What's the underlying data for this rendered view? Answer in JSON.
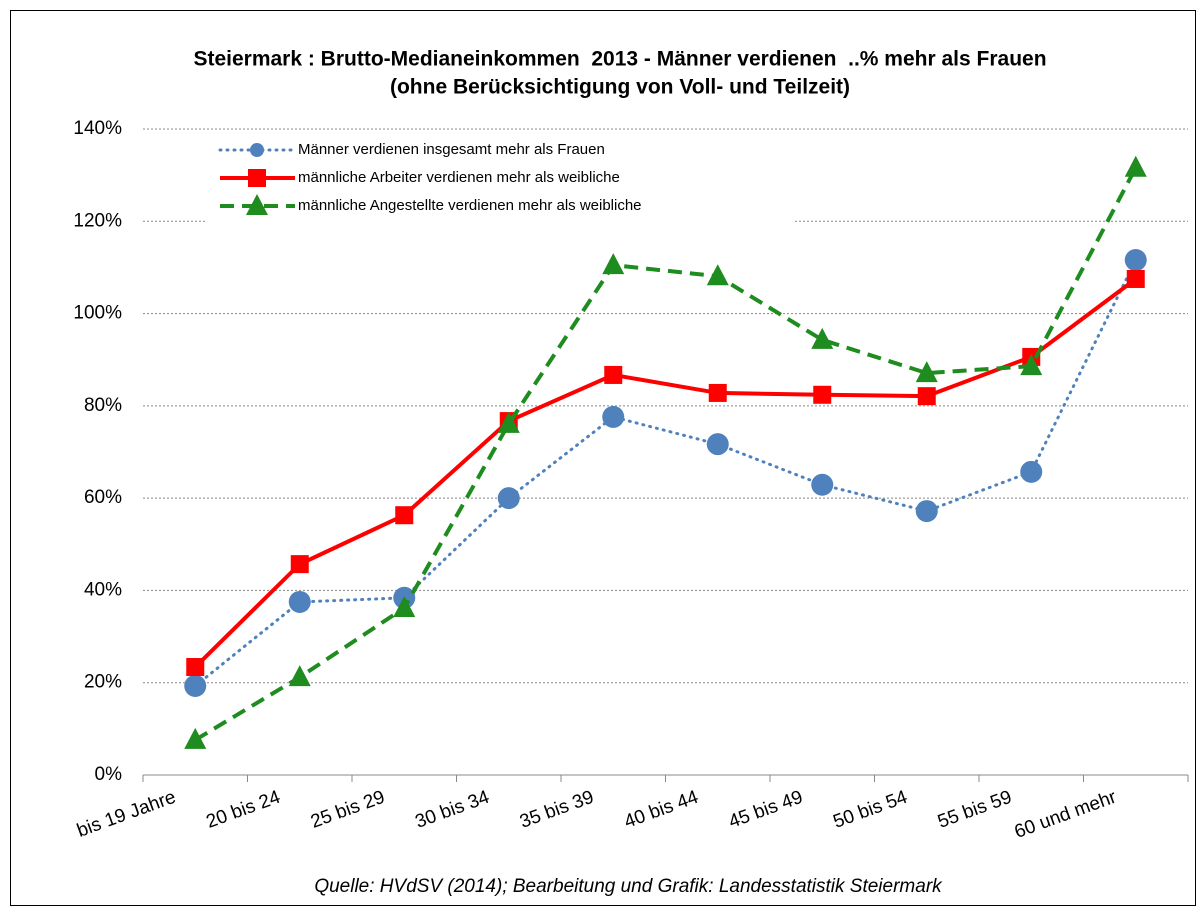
{
  "chart_data": {
    "type": "line",
    "title": "Steiermark : Brutto-Medianeinkommen  2013 - Männer verdienen  ..% mehr als Frauen",
    "subtitle": "(ohne Berücksichtigung von Voll- und Teilzeit)",
    "source": "Quelle: HVdSV (2014); Bearbeitung und Grafik: Landesstatistik Steiermark",
    "categories": [
      "bis 19 Jahre",
      "20 bis 24",
      "25 bis 29",
      "30 bis 34",
      "35 bis 39",
      "40 bis 44",
      "45 bis 49",
      "50 bis 54",
      "55 bis 59",
      "60 und mehr"
    ],
    "series": [
      {
        "name": "Männer verdienen insgesamt mehr als Frauen",
        "color": "#4f81bd",
        "dash": "dotted",
        "marker": "circle",
        "values": [
          19.3,
          37.5,
          38.4,
          60.0,
          77.6,
          71.7,
          62.9,
          57.2,
          65.7,
          111.6
        ]
      },
      {
        "name": "männliche Arbeiter verdienen mehr als weibliche",
        "color": "#ff0000",
        "dash": "solid",
        "marker": "square",
        "values": [
          23.4,
          45.7,
          56.3,
          76.7,
          86.7,
          82.8,
          82.4,
          82.1,
          90.6,
          107.5
        ]
      },
      {
        "name": "männliche Angestellte verdienen mehr als weibliche",
        "color": "#1e8c1e",
        "dash": "dashed",
        "marker": "triangle",
        "values": [
          7.6,
          21.2,
          36.2,
          76.1,
          110.5,
          108.1,
          94.3,
          87.1,
          88.6,
          131.6
        ]
      }
    ],
    "ylim": [
      0,
      140
    ],
    "yticks": [
      {
        "value": 0,
        "label": "0%"
      },
      {
        "value": 20,
        "label": "20%"
      },
      {
        "value": 40,
        "label": "40%"
      },
      {
        "value": 60,
        "label": "60%"
      },
      {
        "value": 80,
        "label": "80%"
      },
      {
        "value": 100,
        "label": "100%"
      },
      {
        "value": 120,
        "label": "120%"
      },
      {
        "value": 140,
        "label": "140%"
      }
    ],
    "grid": true,
    "legend": "top left"
  }
}
